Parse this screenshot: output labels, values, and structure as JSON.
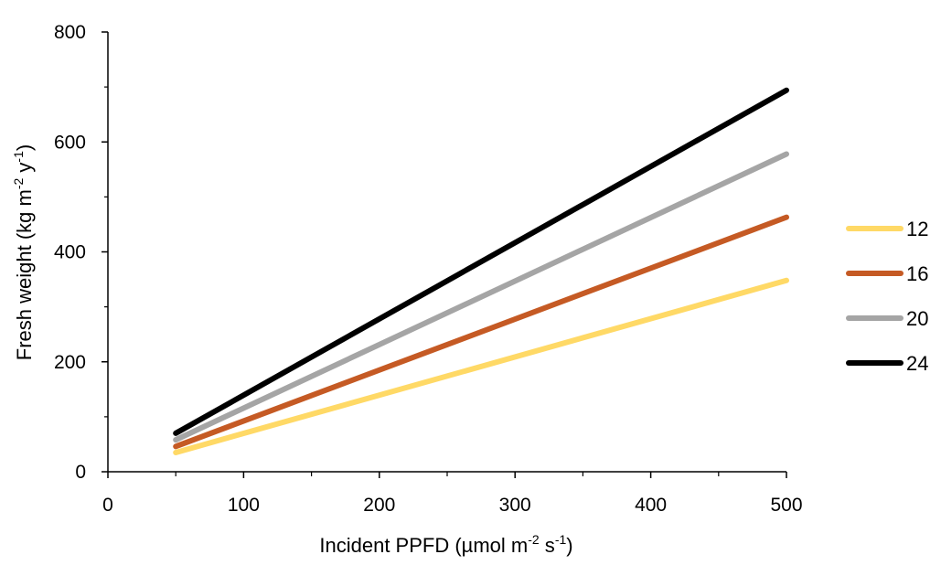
{
  "chart_data": {
    "type": "line",
    "xlabel": {
      "base": "Incident PPFD (µmol m",
      "sup1": "-2",
      "mid": " s",
      "sup2": "-1",
      "end": ")"
    },
    "ylabel": {
      "base": "Fresh weight (kg m",
      "sup1": "-2",
      "mid": " y",
      "sup2": "-1",
      "end": ")"
    },
    "xlim": [
      0,
      500
    ],
    "ylim": [
      0,
      800
    ],
    "x_ticks": [
      0,
      100,
      200,
      300,
      400,
      500
    ],
    "y_ticks": [
      0,
      200,
      400,
      600,
      800
    ],
    "x_tick_labels": [
      "0",
      "100",
      "200",
      "300",
      "400",
      "500"
    ],
    "y_tick_labels": [
      "0",
      "200",
      "400",
      "600",
      "800"
    ],
    "grid": false,
    "legend_position": "right",
    "series": [
      {
        "name": "12",
        "color": "#FFD966",
        "x": [
          50,
          500
        ],
        "y": [
          35,
          348
        ]
      },
      {
        "name": "16",
        "color": "#C55A24",
        "x": [
          50,
          500
        ],
        "y": [
          46,
          463
        ]
      },
      {
        "name": "20",
        "color": "#A5A5A5",
        "x": [
          50,
          500
        ],
        "y": [
          58,
          578
        ]
      },
      {
        "name": "24",
        "color": "#000000",
        "x": [
          50,
          500
        ],
        "y": [
          70,
          694
        ]
      }
    ]
  }
}
